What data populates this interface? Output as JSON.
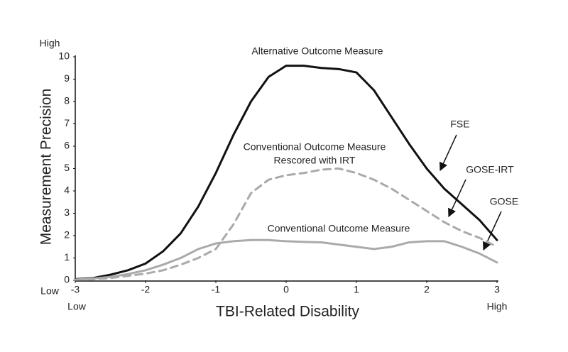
{
  "chart_data": {
    "type": "line",
    "xlabel": "TBI-Related Disability",
    "ylabel": "Measurement Precision",
    "y_axis_ends": [
      "Low",
      "High"
    ],
    "x_axis_ends": [
      "Low",
      "High"
    ],
    "xlim": [
      -3,
      3
    ],
    "xticks": [
      -3,
      -2,
      -1,
      0,
      1,
      2,
      3
    ],
    "ylim": [
      0,
      10
    ],
    "yticks": [
      0,
      1,
      2,
      3,
      4,
      5,
      6,
      7,
      8,
      9,
      10
    ],
    "x": [
      -3,
      -2.75,
      -2.5,
      -2.25,
      -2,
      -1.75,
      -1.5,
      -1.25,
      -1,
      -0.75,
      -0.5,
      -0.25,
      0,
      0.25,
      0.5,
      0.75,
      1,
      1.25,
      1.5,
      1.75,
      2,
      2.25,
      2.5,
      2.75,
      3
    ],
    "series": [
      {
        "name": [
          "Alternative Outcome Measure"
        ],
        "color": "#111111",
        "dashed": false,
        "values": [
          0.05,
          0.1,
          0.25,
          0.45,
          0.75,
          1.3,
          2.1,
          3.3,
          4.8,
          6.5,
          8.0,
          9.1,
          9.6,
          9.6,
          9.5,
          9.45,
          9.3,
          8.5,
          7.3,
          6.1,
          5.0,
          4.1,
          3.4,
          2.7,
          1.8
        ]
      },
      {
        "name": [
          "Conventional Outcome Measure",
          "Rescored with IRT"
        ],
        "color": "#aaaaaa",
        "dashed": true,
        "values": [
          0.03,
          0.05,
          0.1,
          0.2,
          0.3,
          0.45,
          0.7,
          1.0,
          1.4,
          2.5,
          3.9,
          4.5,
          4.7,
          4.8,
          4.95,
          5.0,
          4.8,
          4.5,
          4.1,
          3.6,
          3.1,
          2.6,
          2.2,
          1.9,
          1.5
        ]
      },
      {
        "name": [
          "Conventional Outcome Measure"
        ],
        "color": "#aaaaaa",
        "dashed": false,
        "values": [
          0.03,
          0.08,
          0.15,
          0.28,
          0.45,
          0.7,
          1.0,
          1.4,
          1.65,
          1.75,
          1.8,
          1.8,
          1.75,
          1.72,
          1.7,
          1.6,
          1.5,
          1.4,
          1.5,
          1.7,
          1.75,
          1.75,
          1.5,
          1.2,
          0.8
        ]
      }
    ],
    "annotations": [
      "FSE",
      "GOSE-IRT",
      "GOSE"
    ]
  }
}
